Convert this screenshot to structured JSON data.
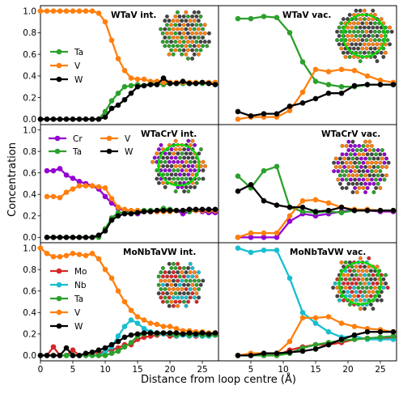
{
  "figure": {
    "xlabel": "Distance from loop centre (Å)",
    "ylabel": "Concentration"
  },
  "colors": {
    "Ta": "#2ca02c",
    "V": "#ff7f0e",
    "W": "#000000",
    "Cr": "#9400d3",
    "Mo": "#d62728",
    "Nb": "#17becf",
    "ring": "#00dd00"
  },
  "chart_data": [
    {
      "type": "line",
      "row": 0,
      "col": 0,
      "title": "WTaV int.",
      "legend": "left",
      "xlim": [
        0,
        27.5
      ],
      "ylim": [
        -0.05,
        1.05
      ],
      "xticks": [],
      "yticks": [
        0.0,
        0.2,
        0.4,
        0.6,
        0.8,
        1.0
      ],
      "yticklabels": [
        "0.0",
        "0.2",
        "0.4",
        "0.6",
        "0.8",
        "1.0"
      ],
      "x": [
        0,
        1,
        2,
        3,
        4,
        5,
        6,
        7,
        8,
        9,
        10,
        11,
        12,
        13,
        14,
        15,
        16,
        17,
        18,
        19,
        20,
        21,
        22,
        23,
        24,
        25,
        26,
        27
      ],
      "series": [
        {
          "name": "Ta",
          "values": [
            0,
            0,
            0,
            0,
            0,
            0,
            0,
            0,
            0,
            0,
            0.07,
            0.17,
            0.24,
            0.3,
            0.31,
            0.32,
            0.31,
            0.33,
            0.33,
            0.32,
            0.33,
            0.33,
            0.33,
            0.33,
            0.33,
            0.33,
            0.33,
            0.33
          ]
        },
        {
          "name": "V",
          "values": [
            1,
            1,
            1,
            1,
            1,
            1,
            1,
            1,
            1,
            0.98,
            0.9,
            0.73,
            0.56,
            0.45,
            0.38,
            0.37,
            0.37,
            0.35,
            0.35,
            0.34,
            0.34,
            0.34,
            0.34,
            0.34,
            0.34,
            0.34,
            0.34,
            0.34
          ]
        },
        {
          "name": "W",
          "values": [
            0,
            0,
            0,
            0,
            0,
            0,
            0,
            0,
            0,
            0,
            0.02,
            0.1,
            0.13,
            0.18,
            0.24,
            0.3,
            0.31,
            0.32,
            0.32,
            0.38,
            0.33,
            0.33,
            0.35,
            0.33,
            0.33,
            0.34,
            0.33,
            0.32
          ]
        }
      ]
    },
    {
      "type": "line",
      "row": 0,
      "col": 1,
      "title": "WTaV vac.",
      "xlim": [
        0,
        27.5
      ],
      "ylim": [
        -0.05,
        1.05
      ],
      "xticks": [],
      "yticks": [],
      "x": [
        3,
        5,
        7,
        9,
        11,
        13,
        15,
        17,
        19,
        21,
        23,
        25,
        27
      ],
      "series": [
        {
          "name": "Ta",
          "values": [
            0.93,
            0.93,
            0.95,
            0.94,
            0.8,
            0.53,
            0.35,
            0.32,
            0.3,
            0.3,
            0.32,
            0.32,
            0.32
          ]
        },
        {
          "name": "V",
          "values": [
            0,
            0.02,
            0.02,
            0.02,
            0.08,
            0.25,
            0.46,
            0.44,
            0.46,
            0.45,
            0.4,
            0.36,
            0.34
          ]
        },
        {
          "name": "W",
          "values": [
            0.07,
            0.03,
            0.05,
            0.05,
            0.12,
            0.15,
            0.19,
            0.24,
            0.24,
            0.31,
            0.32,
            0.32,
            0.32
          ]
        }
      ]
    },
    {
      "type": "line",
      "row": 1,
      "col": 0,
      "title": "WTaCrV int.",
      "legend": "top-left",
      "xlim": [
        0,
        27.5
      ],
      "ylim": [
        -0.05,
        1.05
      ],
      "xticks": [],
      "yticks": [
        0.0,
        0.2,
        0.4,
        0.6,
        0.8,
        1.0
      ],
      "yticklabels": [
        "0.0",
        "0.2",
        "0.4",
        "0.6",
        "0.8",
        "1.0"
      ],
      "x": [
        1,
        2,
        3,
        4,
        5,
        6,
        7,
        8,
        9,
        10,
        11,
        12,
        13,
        14,
        15,
        16,
        17,
        18,
        19,
        20,
        21,
        22,
        23,
        24,
        25,
        26,
        27
      ],
      "series": [
        {
          "name": "Cr",
          "values": [
            0.62,
            0.62,
            0.64,
            0.58,
            0.55,
            0.52,
            0.5,
            0.48,
            0.45,
            0.38,
            0.32,
            0.27,
            0.25,
            0.23,
            0.22,
            0.24,
            0.25,
            0.24,
            0.25,
            0.26,
            0.25,
            0.22,
            0.24,
            0.25,
            0.24,
            0.23,
            0.23
          ]
        },
        {
          "name": "Ta",
          "values": [
            0,
            0,
            0,
            0,
            0,
            0,
            0,
            0,
            0,
            0.08,
            0.18,
            0.23,
            0.23,
            0.23,
            0.25,
            0.25,
            0.25,
            0.25,
            0.27,
            0.26,
            0.25,
            0.25,
            0.24,
            0.25,
            0.25,
            0.25,
            0.25
          ]
        },
        {
          "name": "V",
          "values": [
            0.38,
            0.38,
            0.37,
            0.42,
            0.45,
            0.48,
            0.48,
            0.48,
            0.47,
            0.46,
            0.36,
            0.28,
            0.26,
            0.25,
            0.25,
            0.24,
            0.24,
            0.24,
            0.24,
            0.24,
            0.25,
            0.25,
            0.26,
            0.25,
            0.25,
            0.25,
            0.25
          ]
        },
        {
          "name": "W",
          "values": [
            0,
            0,
            0,
            0,
            0,
            0,
            0,
            0,
            0.02,
            0.06,
            0.16,
            0.2,
            0.22,
            0.22,
            0.23,
            0.24,
            0.24,
            0.25,
            0.25,
            0.25,
            0.25,
            0.25,
            0.26,
            0.26,
            0.26,
            0.26,
            0.26
          ]
        }
      ]
    },
    {
      "type": "line",
      "row": 1,
      "col": 1,
      "title": "WTaCrV vac.",
      "xlim": [
        0,
        27.5
      ],
      "ylim": [
        -0.05,
        1.05
      ],
      "xticks": [],
      "yticks": [],
      "x": [
        3,
        5,
        7,
        9,
        11,
        13,
        15,
        17,
        19,
        21,
        23,
        25,
        27
      ],
      "series": [
        {
          "name": "Cr",
          "values": [
            0,
            0,
            0,
            0,
            0.15,
            0.22,
            0.2,
            0.22,
            0.24,
            0.25,
            0.25,
            0.24,
            0.24
          ]
        },
        {
          "name": "Ta",
          "values": [
            0.57,
            0.46,
            0.62,
            0.66,
            0.28,
            0.24,
            0.23,
            0.24,
            0.23,
            0.25,
            0.25,
            0.25,
            0.25
          ]
        },
        {
          "name": "V",
          "values": [
            0,
            0.04,
            0.04,
            0.04,
            0.2,
            0.34,
            0.35,
            0.32,
            0.28,
            0.26,
            0.26,
            0.25,
            0.25
          ]
        },
        {
          "name": "W",
          "values": [
            0.43,
            0.49,
            0.34,
            0.3,
            0.28,
            0.28,
            0.24,
            0.25,
            0.28,
            0.25,
            0.25,
            0.25,
            0.25
          ]
        }
      ]
    },
    {
      "type": "line",
      "row": 2,
      "col": 0,
      "title": "MoNbTaVW int.",
      "legend": "left",
      "xlim": [
        0,
        27.5
      ],
      "ylim": [
        -0.05,
        1.05
      ],
      "xticks": [
        0,
        5,
        10,
        15,
        20,
        25
      ],
      "xticklabels": [
        "0",
        "5",
        "10",
        "15",
        "20",
        "25"
      ],
      "yticks": [
        0.0,
        0.2,
        0.4,
        0.6,
        0.8,
        1.0
      ],
      "yticklabels": [
        "0.0",
        "0.2",
        "0.4",
        "0.6",
        "0.8",
        "1.0"
      ],
      "x": [
        0,
        1,
        2,
        3,
        4,
        5,
        6,
        7,
        8,
        9,
        10,
        11,
        12,
        13,
        14,
        15,
        16,
        17,
        18,
        19,
        20,
        21,
        22,
        23,
        24,
        25,
        26,
        27
      ],
      "series": [
        {
          "name": "Mo",
          "values": [
            0,
            0,
            0.08,
            0,
            0,
            0.05,
            0,
            0,
            0.03,
            0.02,
            0.04,
            0.05,
            0.07,
            0.1,
            0.1,
            0.15,
            0.17,
            0.18,
            0.19,
            0.2,
            0.18,
            0.18,
            0.2,
            0.19,
            0.18,
            0.19,
            0.19,
            0.2
          ]
        },
        {
          "name": "Nb",
          "values": [
            0,
            0,
            0,
            0,
            0,
            0,
            0,
            0,
            0,
            0,
            0.03,
            0.08,
            0.18,
            0.27,
            0.33,
            0.3,
            0.25,
            0.22,
            0.2,
            0.2,
            0.2,
            0.18,
            0.19,
            0.18,
            0.19,
            0.18,
            0.18,
            0.19
          ]
        },
        {
          "name": "Ta",
          "values": [
            0,
            0,
            0,
            0,
            0,
            0,
            0,
            0,
            0,
            0,
            0,
            0.02,
            0.04,
            0.08,
            0.12,
            0.18,
            0.2,
            0.21,
            0.2,
            0.21,
            0.2,
            0.19,
            0.2,
            0.19,
            0.2,
            0.19,
            0.19,
            0.19
          ]
        },
        {
          "name": "V",
          "values": [
            1.0,
            0.95,
            0.92,
            0.92,
            0.93,
            0.95,
            0.94,
            0.93,
            0.95,
            0.9,
            0.8,
            0.72,
            0.6,
            0.5,
            0.42,
            0.36,
            0.33,
            0.3,
            0.29,
            0.27,
            0.27,
            0.25,
            0.23,
            0.23,
            0.22,
            0.22,
            0.21,
            0.21
          ]
        },
        {
          "name": "W",
          "values": [
            0,
            0,
            0,
            0,
            0.07,
            0,
            0,
            0.02,
            0.03,
            0.05,
            0.07,
            0.1,
            0.13,
            0.17,
            0.19,
            0.2,
            0.21,
            0.21,
            0.21,
            0.21,
            0.21,
            0.21,
            0.2,
            0.21,
            0.2,
            0.21,
            0.2,
            0.21
          ]
        }
      ]
    },
    {
      "type": "line",
      "row": 2,
      "col": 1,
      "title": "MoNbTaVW vac.",
      "xlim": [
        0,
        27.5
      ],
      "ylim": [
        -0.05,
        1.05
      ],
      "xticks": [
        5,
        10,
        15,
        20,
        25
      ],
      "xticklabels": [
        "5",
        "10",
        "15",
        "20",
        "25"
      ],
      "yticks": [],
      "x": [
        3,
        5,
        7,
        9,
        11,
        13,
        15,
        17,
        19,
        21,
        23,
        25,
        27
      ],
      "series": [
        {
          "name": "Mo",
          "values": [
            0,
            0,
            0,
            0,
            0.05,
            0.08,
            0.1,
            0.1,
            0.12,
            0.15,
            0.16,
            0.16,
            0.17
          ]
        },
        {
          "name": "Nb",
          "values": [
            1.0,
            0.96,
            0.98,
            0.98,
            0.72,
            0.4,
            0.3,
            0.22,
            0.17,
            0.18,
            0.15,
            0.15,
            0.15
          ]
        },
        {
          "name": "Ta",
          "values": [
            0,
            0,
            0,
            0,
            0.02,
            0.07,
            0.1,
            0.12,
            0.14,
            0.15,
            0.16,
            0.17,
            0.18
          ]
        },
        {
          "name": "V",
          "values": [
            0,
            0.02,
            0.02,
            0.02,
            0.13,
            0.35,
            0.35,
            0.36,
            0.3,
            0.27,
            0.25,
            0.24,
            0.22
          ]
        },
        {
          "name": "W",
          "values": [
            0,
            0,
            0.02,
            0.02,
            0.03,
            0.04,
            0.06,
            0.1,
            0.15,
            0.19,
            0.22,
            0.22,
            0.22
          ]
        }
      ]
    }
  ],
  "legend_sets": [
    [
      "Ta",
      "V",
      "W"
    ],
    [
      "Cr",
      "Ta",
      "V",
      "W"
    ],
    [
      "Mo",
      "Nb",
      "Ta",
      "V",
      "W"
    ]
  ]
}
